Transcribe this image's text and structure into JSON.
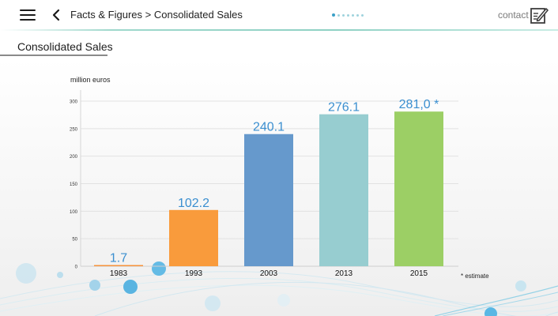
{
  "header": {
    "breadcrumb": "Facts & Figures > Consolidated Sales",
    "contact_label": "contact",
    "dots": {
      "count": 7,
      "active_index": 0
    }
  },
  "section": {
    "title": "Consolidated Sales"
  },
  "icons": {
    "menu": "menu-icon",
    "back": "chevron-left-icon",
    "contact": "edit-note-icon"
  },
  "colors": {
    "accent": "#3a9fc7",
    "label_blue": "#3b8fd0",
    "header_line": "#8fd1c4"
  },
  "chart_data": {
    "type": "bar",
    "ylabel": "million euros",
    "ylim": [
      0,
      300
    ],
    "yticks": [
      0,
      50,
      100,
      150,
      200,
      250,
      300
    ],
    "categories": [
      "1983",
      "1993",
      "2003",
      "2013",
      "2015"
    ],
    "values": [
      1.7,
      102.2,
      240.1,
      276.1,
      281.0
    ],
    "data_labels": [
      "1.7",
      "102.2",
      "240.1",
      "276.1",
      "281,0 *"
    ],
    "bar_colors": [
      "#f7923a",
      "#f99b3c",
      "#6699cc",
      "#97cdd0",
      "#9ccf65"
    ],
    "grid": true,
    "footnote": "* estimate"
  }
}
